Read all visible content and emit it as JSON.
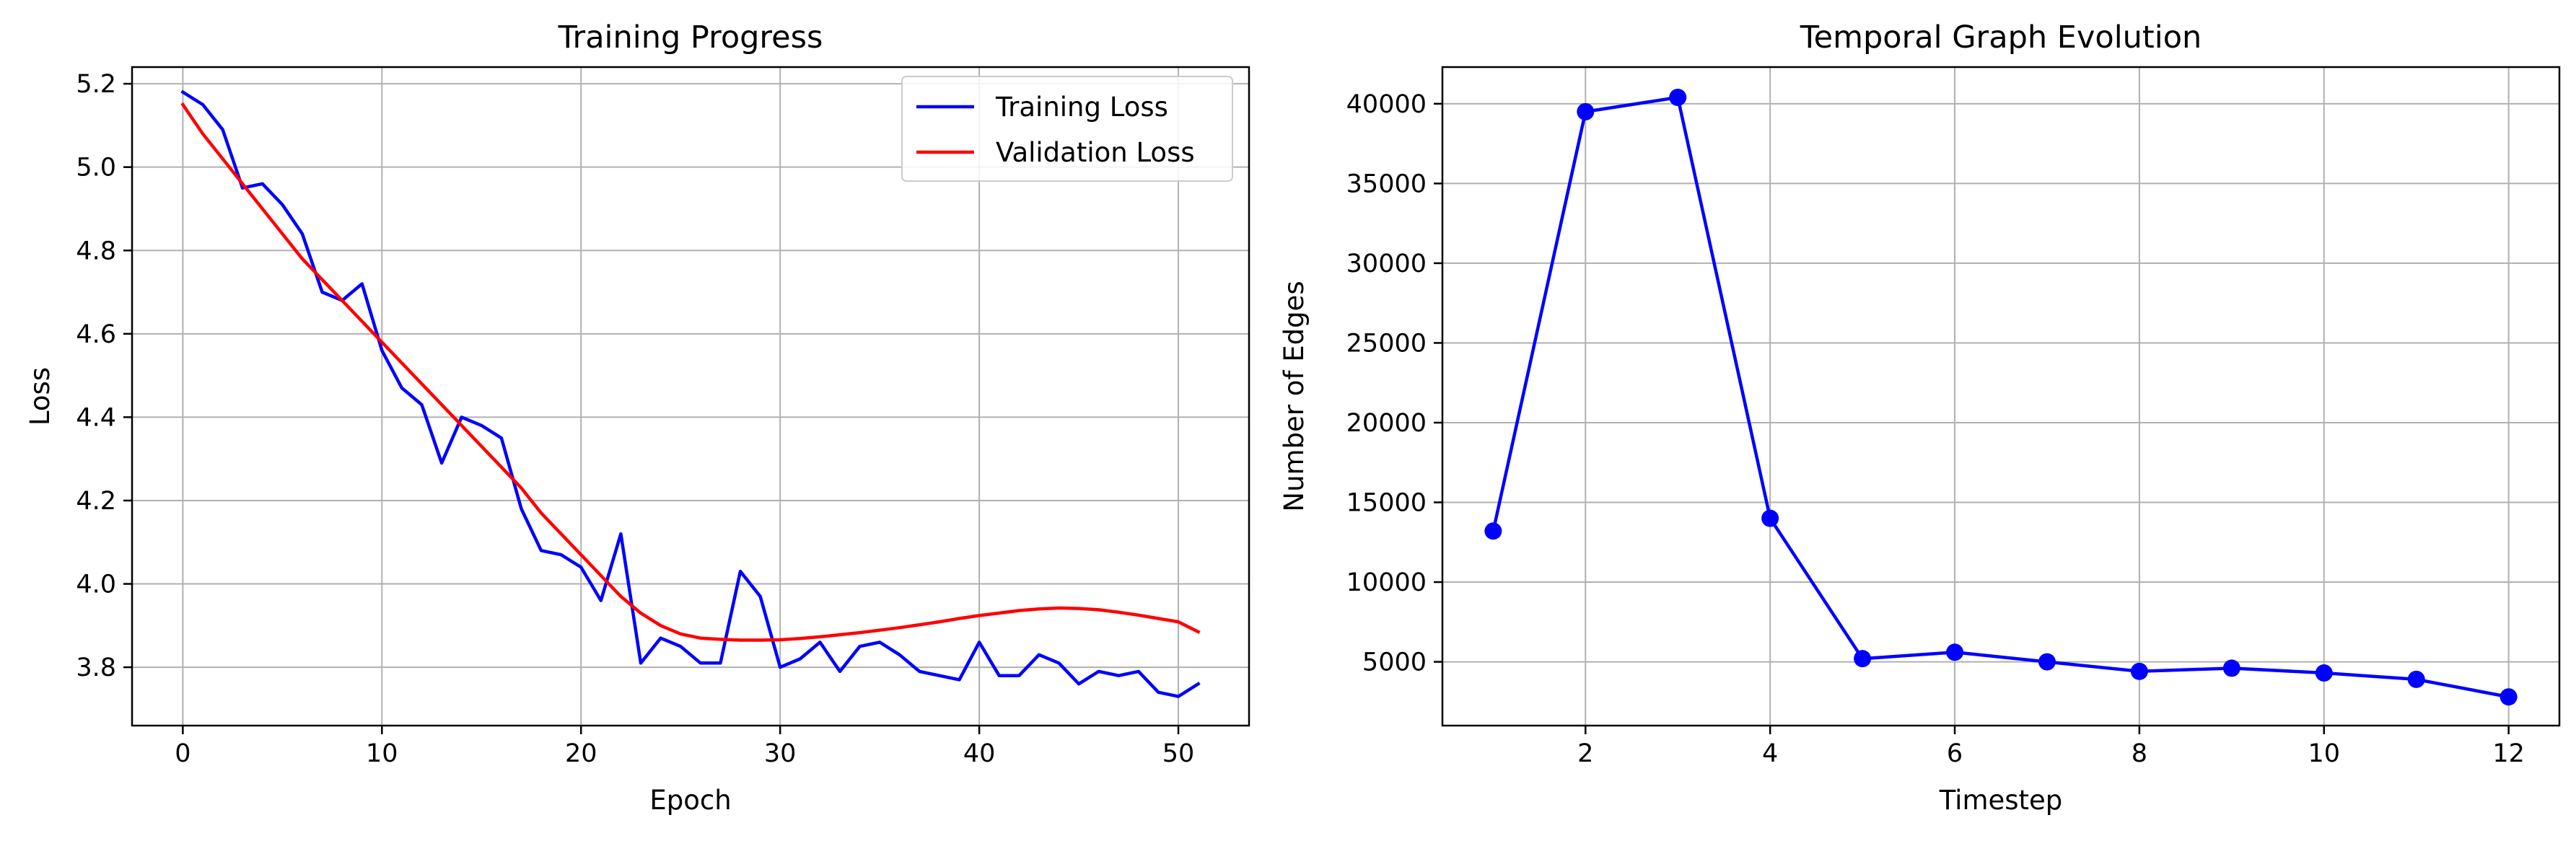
{
  "chart_data": [
    {
      "type": "line",
      "title": "Training Progress",
      "xlabel": "Epoch",
      "ylabel": "Loss",
      "xlim": [
        -2.55,
        53.55
      ],
      "ylim": [
        3.66,
        5.24
      ],
      "xticks": [
        0,
        10,
        20,
        30,
        40,
        50
      ],
      "xtick_labels": [
        "0",
        "10",
        "20",
        "30",
        "40",
        "50"
      ],
      "yticks": [
        3.8,
        4.0,
        4.2,
        4.4,
        4.6,
        4.8,
        5.0,
        5.2
      ],
      "ytick_labels": [
        "3.8",
        "4.0",
        "4.2",
        "4.4",
        "4.6",
        "4.8",
        "5.0",
        "5.2"
      ],
      "grid": true,
      "legend_position": "top-right",
      "x": [
        0,
        1,
        2,
        3,
        4,
        5,
        6,
        7,
        8,
        9,
        10,
        11,
        12,
        13,
        14,
        15,
        16,
        17,
        18,
        19,
        20,
        21,
        22,
        23,
        24,
        25,
        26,
        27,
        28,
        29,
        30,
        31,
        32,
        33,
        34,
        35,
        36,
        37,
        38,
        39,
        40,
        41,
        42,
        43,
        44,
        45,
        46,
        47,
        48,
        49,
        50,
        51
      ],
      "series": [
        {
          "name": "Training Loss",
          "color": "#0000ff",
          "values": [
            5.18,
            5.15,
            5.09,
            4.95,
            4.96,
            4.91,
            4.84,
            4.7,
            4.68,
            4.72,
            4.56,
            4.47,
            4.43,
            4.29,
            4.4,
            4.38,
            4.35,
            4.18,
            4.08,
            4.07,
            4.04,
            3.96,
            4.12,
            3.81,
            3.87,
            3.85,
            3.81,
            3.81,
            4.03,
            3.97,
            3.8,
            3.82,
            3.86,
            3.79,
            3.85,
            3.86,
            3.83,
            3.79,
            3.78,
            3.77,
            3.86,
            3.78,
            3.78,
            3.83,
            3.81,
            3.76,
            3.79,
            3.78,
            3.79,
            3.74,
            3.73,
            3.76
          ]
        },
        {
          "name": "Validation Loss",
          "color": "#ff0000",
          "values": [
            5.15,
            5.08,
            5.02,
            4.96,
            4.9,
            4.84,
            4.78,
            4.73,
            4.68,
            4.63,
            4.58,
            4.53,
            4.48,
            4.43,
            4.38,
            4.33,
            4.28,
            4.23,
            4.17,
            4.12,
            4.07,
            4.02,
            3.97,
            3.93,
            3.9,
            3.88,
            3.87,
            3.867,
            3.865,
            3.865,
            3.866,
            3.869,
            3.873,
            3.878,
            3.883,
            3.889,
            3.895,
            3.902,
            3.909,
            3.917,
            3.924,
            3.93,
            3.936,
            3.94,
            3.942,
            3.941,
            3.938,
            3.932,
            3.925,
            3.917,
            3.909,
            3.885
          ]
        }
      ]
    },
    {
      "type": "line",
      "title": "Temporal Graph Evolution",
      "xlabel": "Timestep",
      "ylabel": "Number of Edges",
      "xlim": [
        0.45,
        12.55
      ],
      "ylim": [
        1000,
        42300
      ],
      "xticks": [
        2,
        4,
        6,
        8,
        10,
        12
      ],
      "xtick_labels": [
        "2",
        "4",
        "6",
        "8",
        "10",
        "12"
      ],
      "yticks": [
        5000,
        10000,
        15000,
        20000,
        25000,
        30000,
        35000,
        40000
      ],
      "ytick_labels": [
        "5000",
        "10000",
        "15000",
        "20000",
        "25000",
        "30000",
        "35000",
        "40000"
      ],
      "grid": true,
      "x": [
        1,
        2,
        3,
        4,
        5,
        6,
        7,
        8,
        9,
        10,
        11,
        12
      ],
      "series": [
        {
          "color": "#0000ff",
          "marker": "circle",
          "values": [
            13200,
            39500,
            40400,
            14000,
            5200,
            5600,
            5000,
            4400,
            4600,
            4300,
            3900,
            2800
          ]
        }
      ]
    }
  ]
}
